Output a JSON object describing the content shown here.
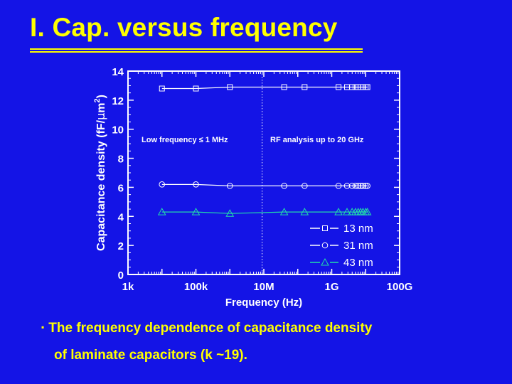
{
  "slide": {
    "title": "I. Cap. versus frequency",
    "caption_line1": "The frequency dependence of capacitance density",
    "caption_line2": "of laminate capacitors (k ~19).",
    "bullet": "▪",
    "colors": {
      "background": "#1414e6",
      "title": "#ffff00",
      "text": "#ffffff",
      "series_13nm": "#ffffff",
      "series_31nm": "#ffffff",
      "series_43nm": "#22ddaa"
    }
  },
  "chart_data": {
    "type": "line",
    "xlabel": "Frequency (Hz)",
    "ylabel": "Capacitance density (fF/μm²)",
    "ylabel_parts": {
      "prefix": "Capacitance density (fF/",
      "mu": "μ",
      "unit": "m",
      "sup": "2",
      "suffix": ")"
    },
    "xscale": "log",
    "xlim_log10": [
      3,
      11
    ],
    "xticks_log10": [
      3,
      5,
      7,
      9,
      11
    ],
    "xtick_labels": [
      "1k",
      "100k",
      "10M",
      "1G",
      "100G"
    ],
    "ylim": [
      0,
      14
    ],
    "yticks": [
      0,
      2,
      4,
      6,
      8,
      10,
      12,
      14
    ],
    "grid": false,
    "legend_position": "bottom-right",
    "annotations": [
      {
        "text": "Low frequency ≤ 1 MHz"
      },
      {
        "text": "RF analysis up to 20 GHz"
      }
    ],
    "divider_x_log10": 6.95,
    "x_log10": [
      4.0,
      5.0,
      6.0,
      7.6,
      8.2,
      9.2,
      9.45,
      9.6,
      9.7,
      9.78,
      9.85,
      9.92,
      10.0,
      10.05
    ],
    "series": [
      {
        "name": "13 nm",
        "marker": "square",
        "color": "#ffffff",
        "values": [
          12.8,
          12.8,
          12.9,
          12.9,
          12.9,
          12.9,
          12.9,
          12.9,
          12.9,
          12.9,
          12.9,
          12.9,
          12.9,
          12.9
        ]
      },
      {
        "name": "31 nm",
        "marker": "circle",
        "color": "#ffffff",
        "values": [
          6.2,
          6.2,
          6.1,
          6.1,
          6.1,
          6.1,
          6.1,
          6.1,
          6.1,
          6.1,
          6.1,
          6.1,
          6.1,
          6.1
        ]
      },
      {
        "name": "43 nm",
        "marker": "triangle",
        "color": "#22ddaa",
        "values": [
          4.3,
          4.3,
          4.2,
          4.3,
          4.3,
          4.3,
          4.3,
          4.3,
          4.3,
          4.3,
          4.3,
          4.3,
          4.3,
          4.3
        ]
      }
    ]
  }
}
